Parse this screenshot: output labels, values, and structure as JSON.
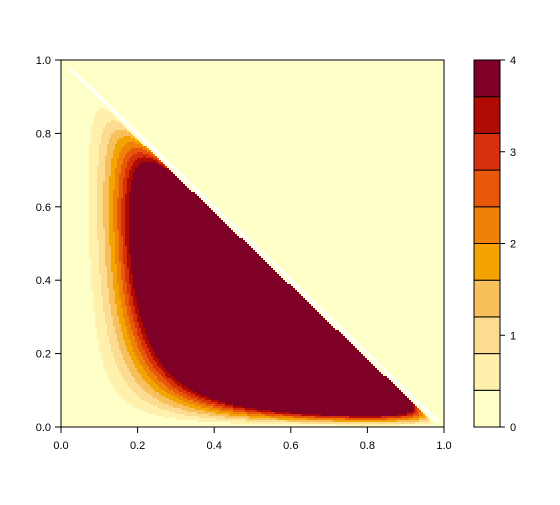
{
  "chart_data": {
    "type": "filled-contour",
    "title": "",
    "xlabel": "",
    "ylabel": "",
    "xlim": [
      0,
      1
    ],
    "ylim": [
      0,
      1
    ],
    "zlim": [
      0,
      4
    ],
    "x_ticks": [
      "0.0",
      "0.2",
      "0.4",
      "0.6",
      "0.8",
      "1.0"
    ],
    "y_ticks": [
      "0.0",
      "0.2",
      "0.4",
      "0.6",
      "0.8",
      "1.0"
    ],
    "colorbar": {
      "ticks": [
        "0",
        "1",
        "2",
        "3",
        "4"
      ],
      "levels": [
        0,
        0.4,
        0.8,
        1.2,
        1.6,
        2.0,
        2.4,
        2.8,
        3.2,
        3.6,
        4.0
      ],
      "colors": [
        "#FFFFC8",
        "#FFF0AC",
        "#FBDC90",
        "#F7C05A",
        "#F4A401",
        "#EF8109",
        "#E9580A",
        "#D7300C",
        "#B00A04",
        "#7E0026"
      ]
    },
    "density": {
      "support": "x >= 0, y >= 0, x + y <= 1",
      "peak": {
        "x": 0.3,
        "y": 0.13,
        "level": 3.6
      },
      "outside_support_color": "#FFFFC8",
      "support_edge_color": "#FFFFFF"
    }
  }
}
